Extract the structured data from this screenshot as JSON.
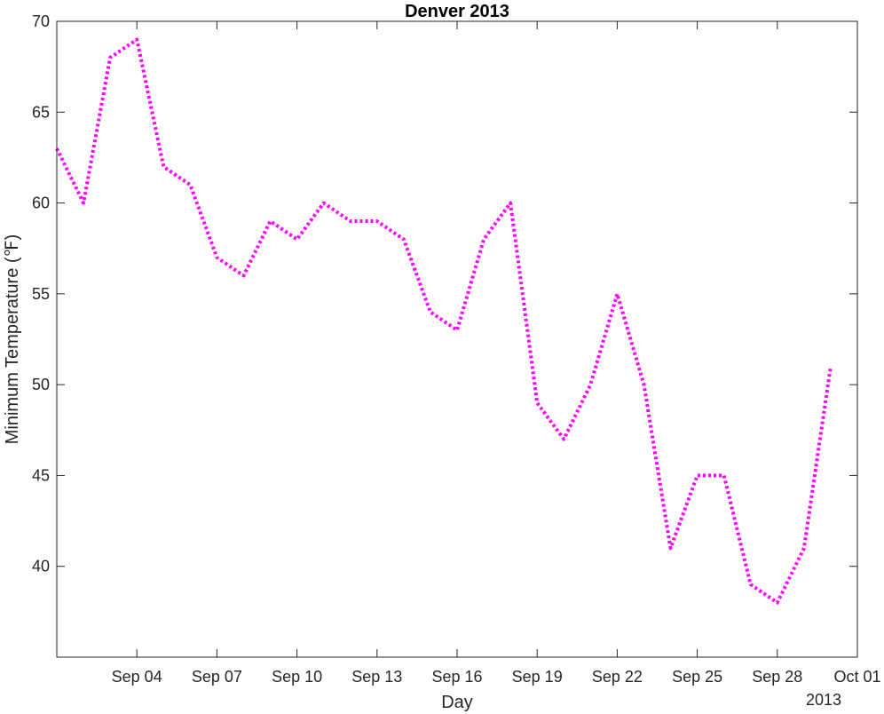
{
  "chart_data": {
    "type": "line",
    "title": "Denver 2013",
    "xlabel": "Day",
    "ylabel": "Minimum Temperature (℉)",
    "x_secondary_label": "2013",
    "x_range": [
      "2013-09-01",
      "2013-10-01"
    ],
    "x_ticks": [
      {
        "date": "2013-09-04",
        "label": "Sep 04"
      },
      {
        "date": "2013-09-07",
        "label": "Sep 07"
      },
      {
        "date": "2013-09-10",
        "label": "Sep 10"
      },
      {
        "date": "2013-09-13",
        "label": "Sep 13"
      },
      {
        "date": "2013-09-16",
        "label": "Sep 16"
      },
      {
        "date": "2013-09-19",
        "label": "Sep 19"
      },
      {
        "date": "2013-09-22",
        "label": "Sep 22"
      },
      {
        "date": "2013-09-25",
        "label": "Sep 25"
      },
      {
        "date": "2013-09-28",
        "label": "Sep 28"
      },
      {
        "date": "2013-10-01",
        "label": "Oct 01"
      }
    ],
    "ylim": [
      35,
      70
    ],
    "y_ticks": [
      40,
      45,
      50,
      55,
      60,
      65,
      70
    ],
    "grid": false,
    "series": [
      {
        "color": "#ff00ff",
        "line_style": "dotted",
        "x": [
          "2013-09-01",
          "2013-09-02",
          "2013-09-03",
          "2013-09-04",
          "2013-09-05",
          "2013-09-06",
          "2013-09-07",
          "2013-09-08",
          "2013-09-09",
          "2013-09-10",
          "2013-09-11",
          "2013-09-12",
          "2013-09-13",
          "2013-09-14",
          "2013-09-15",
          "2013-09-16",
          "2013-09-17",
          "2013-09-18",
          "2013-09-19",
          "2013-09-20",
          "2013-09-21",
          "2013-09-22",
          "2013-09-23",
          "2013-09-24",
          "2013-09-25",
          "2013-09-26",
          "2013-09-27",
          "2013-09-28",
          "2013-09-29",
          "2013-09-30"
        ],
        "values": [
          63,
          60,
          68,
          69,
          62,
          61,
          57,
          56,
          59,
          58,
          60,
          59,
          59,
          58,
          54,
          53,
          58,
          60,
          49,
          47,
          50,
          55,
          50,
          41,
          45,
          45,
          39,
          38,
          41,
          51
        ]
      }
    ]
  }
}
